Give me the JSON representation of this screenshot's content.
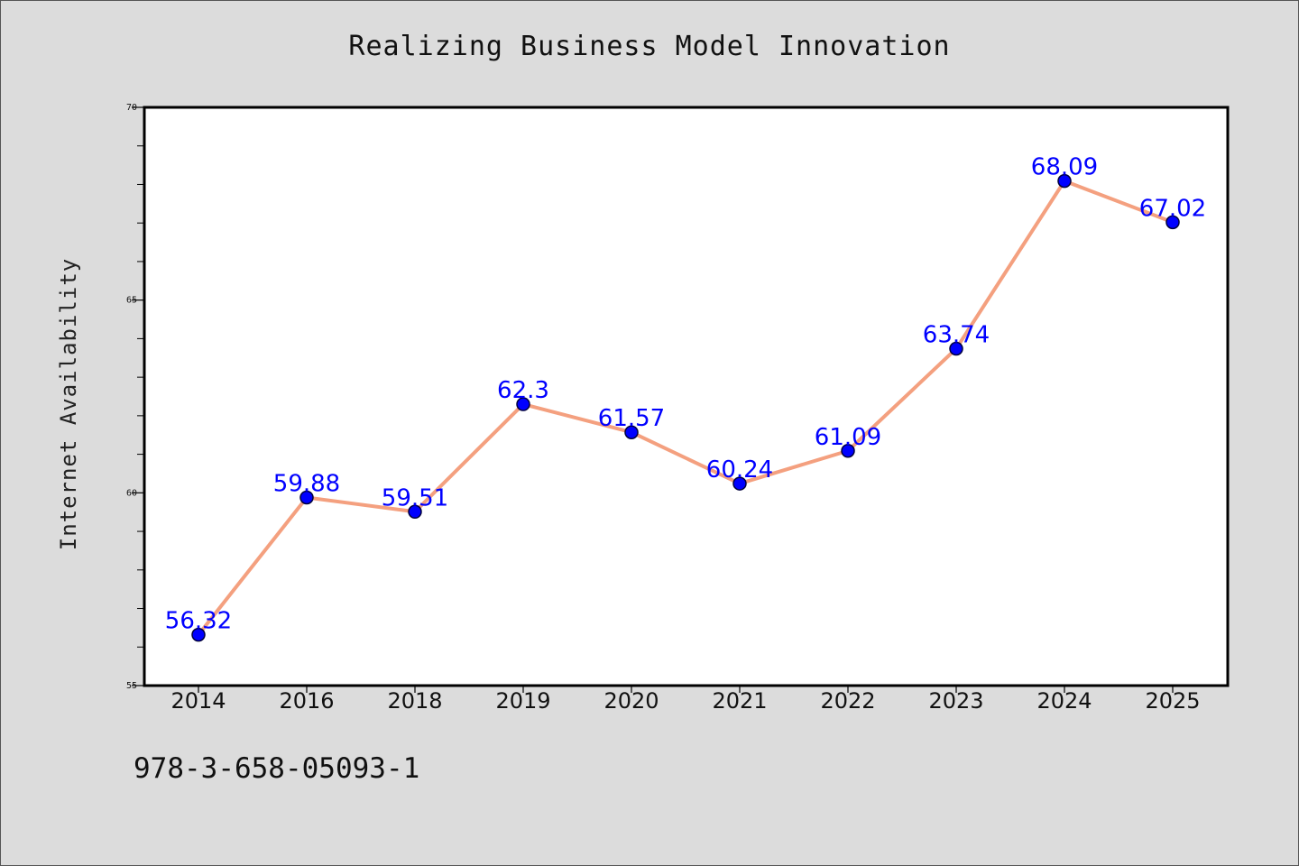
{
  "footer": {
    "code": "978-3-658-05093-1"
  },
  "chart_data": {
    "type": "line",
    "title": "Realizing Business Model Innovation",
    "xlabel": "",
    "ylabel": "Internet Availability",
    "categories": [
      "2014",
      "2016",
      "2018",
      "2019",
      "2020",
      "2021",
      "2022",
      "2023",
      "2024",
      "2025"
    ],
    "series": [
      {
        "values": [
          56.32,
          59.88,
          59.51,
          62.3,
          61.57,
          60.24,
          61.09,
          63.74,
          68.09,
          67.02
        ],
        "data_labels": [
          "56.32",
          "59.88",
          "59.51",
          "62.3",
          "61.57",
          "60.24",
          "61.09",
          "63.74",
          "68.09",
          "67.02"
        ]
      }
    ],
    "ylim": [
      55,
      70
    ],
    "yticks": [
      55,
      60,
      65,
      70
    ],
    "yticks_minor": [
      56,
      57,
      58,
      59,
      61,
      62,
      63,
      64,
      66,
      67,
      68,
      69
    ],
    "grid": false,
    "legend": "none",
    "colors": {
      "line": "#f4a07f",
      "marker_fill": "#0000ff",
      "marker_edge": "#00003c",
      "data_label": "#0000ff",
      "plot_background": "#ffffff",
      "figure_background": "#dcdcdc"
    }
  }
}
